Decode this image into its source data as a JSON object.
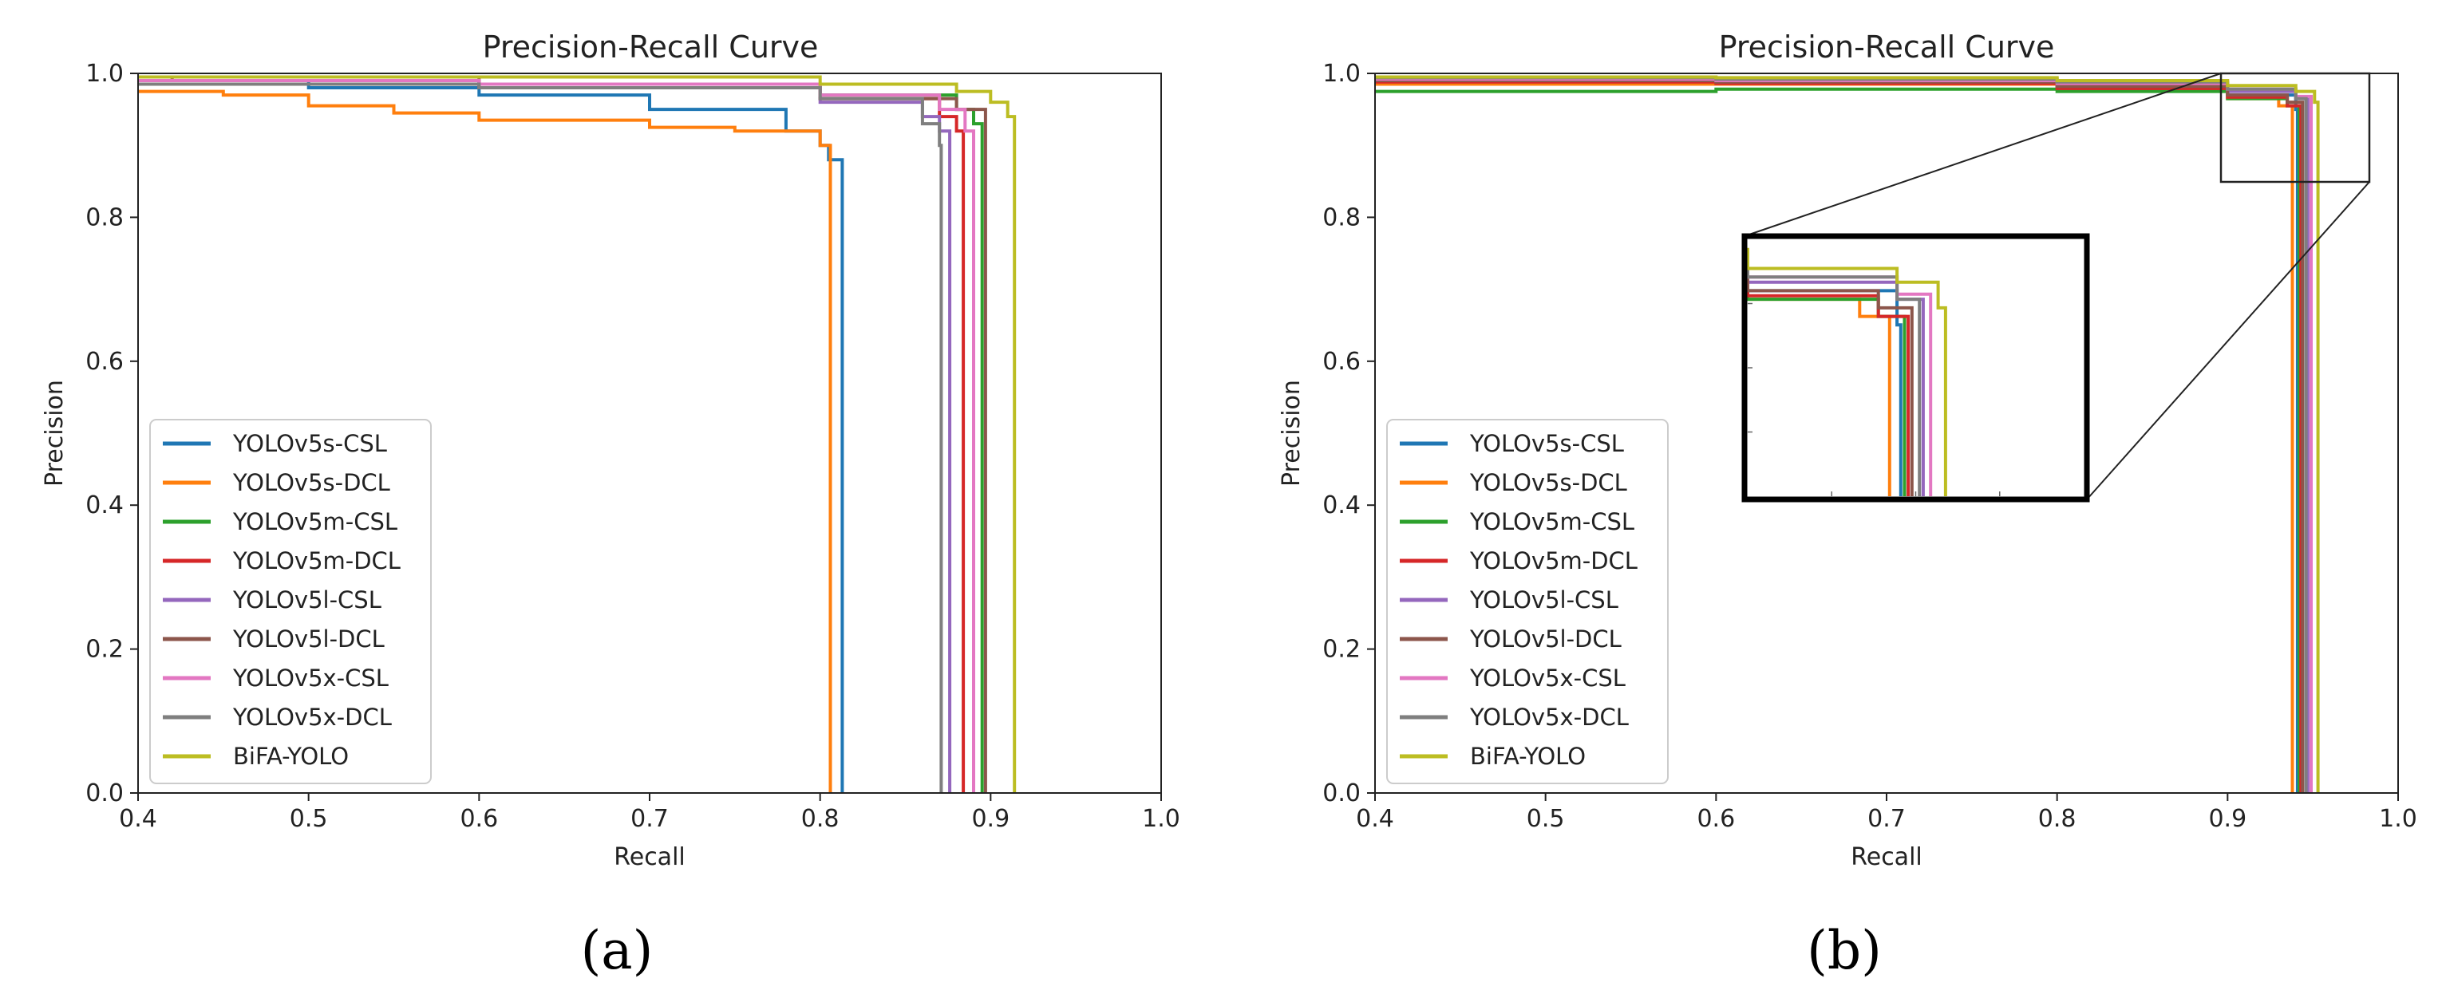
{
  "colors": {
    "YOLOv5s-CSL": "#1f77b4",
    "YOLOv5s-DCL": "#ff7f0e",
    "YOLOv5m-CSL": "#2ca02c",
    "YOLOv5m-DCL": "#d62728",
    "YOLOv5l-CSL": "#9467bd",
    "YOLOv5l-DCL": "#8c564b",
    "YOLOv5x-CSL": "#e377c2",
    "YOLOv5x-DCL": "#7f7f7f",
    "BiFA-YOLO": "#bcbd22"
  },
  "chart_data": [
    {
      "type": "line",
      "panel_label": "(a)",
      "title": "Precision-Recall Curve",
      "xlabel": "Recall",
      "ylabel": "Precision",
      "xlim": [
        0.4,
        1.0
      ],
      "ylim": [
        0.0,
        1.0
      ],
      "xticks": [
        "0.4",
        "0.5",
        "0.6",
        "0.7",
        "0.8",
        "0.9",
        "1.0"
      ],
      "yticks": [
        "0.0",
        "0.2",
        "0.4",
        "0.6",
        "0.8",
        "1.0"
      ],
      "legend_position": "lower-left",
      "series": [
        {
          "name": "YOLOv5s-CSL",
          "x": [
            0.4,
            0.5,
            0.6,
            0.7,
            0.78,
            0.8,
            0.805,
            0.813,
            0.813
          ],
          "y": [
            0.99,
            0.98,
            0.97,
            0.95,
            0.92,
            0.9,
            0.88,
            0.87,
            0.0
          ]
        },
        {
          "name": "YOLOv5s-DCL",
          "x": [
            0.4,
            0.45,
            0.5,
            0.55,
            0.6,
            0.65,
            0.7,
            0.75,
            0.8,
            0.806,
            0.806
          ],
          "y": [
            0.975,
            0.97,
            0.955,
            0.945,
            0.935,
            0.935,
            0.925,
            0.92,
            0.9,
            0.87,
            0.0
          ]
        },
        {
          "name": "YOLOv5m-CSL",
          "x": [
            0.4,
            0.6,
            0.8,
            0.88,
            0.89,
            0.895,
            0.895
          ],
          "y": [
            0.99,
            0.985,
            0.97,
            0.95,
            0.93,
            0.92,
            0.0
          ]
        },
        {
          "name": "YOLOv5m-DCL",
          "x": [
            0.4,
            0.6,
            0.8,
            0.87,
            0.88,
            0.884,
            0.884
          ],
          "y": [
            0.985,
            0.98,
            0.965,
            0.94,
            0.92,
            0.9,
            0.0
          ]
        },
        {
          "name": "YOLOv5l-CSL",
          "x": [
            0.4,
            0.6,
            0.8,
            0.86,
            0.87,
            0.876,
            0.876
          ],
          "y": [
            0.985,
            0.98,
            0.96,
            0.94,
            0.92,
            0.9,
            0.0
          ]
        },
        {
          "name": "YOLOv5l-DCL",
          "x": [
            0.4,
            0.42,
            0.6,
            0.8,
            0.88,
            0.897,
            0.897
          ],
          "y": [
            0.99,
            0.995,
            0.98,
            0.965,
            0.95,
            0.93,
            0.0
          ]
        },
        {
          "name": "YOLOv5x-CSL",
          "x": [
            0.4,
            0.6,
            0.8,
            0.87,
            0.885,
            0.89,
            0.89
          ],
          "y": [
            0.99,
            0.985,
            0.97,
            0.95,
            0.92,
            0.9,
            0.0
          ]
        },
        {
          "name": "YOLOv5x-DCL",
          "x": [
            0.4,
            0.6,
            0.8,
            0.86,
            0.87,
            0.871,
            0.871
          ],
          "y": [
            0.985,
            0.98,
            0.965,
            0.93,
            0.9,
            0.89,
            0.0
          ]
        },
        {
          "name": "BiFA-YOLO",
          "x": [
            0.4,
            0.6,
            0.8,
            0.88,
            0.9,
            0.91,
            0.914,
            0.914
          ],
          "y": [
            0.995,
            0.995,
            0.985,
            0.975,
            0.96,
            0.94,
            0.91,
            0.0
          ]
        }
      ]
    },
    {
      "type": "line",
      "panel_label": "(b)",
      "title": "Precision-Recall Curve",
      "xlabel": "Recall",
      "ylabel": "Precision",
      "xlim": [
        0.4,
        1.0
      ],
      "ylim": [
        0.0,
        1.0
      ],
      "xticks": [
        "0.4",
        "0.5",
        "0.6",
        "0.7",
        "0.8",
        "0.9",
        "1.0"
      ],
      "yticks": [
        "0.0",
        "0.2",
        "0.4",
        "0.6",
        "0.8",
        "1.0"
      ],
      "legend_position": "lower-left",
      "inset": {
        "xlim": [
          0.9,
          0.99
        ],
        "ylim": [
          0.85,
          1.0
        ],
        "has_zoom_box": true
      },
      "series": [
        {
          "name": "YOLOv5s-CSL",
          "x": [
            0.4,
            0.6,
            0.8,
            0.9,
            0.94,
            0.941,
            0.941
          ],
          "y": [
            0.99,
            0.988,
            0.98,
            0.97,
            0.95,
            0.93,
            0.0
          ]
        },
        {
          "name": "YOLOv5s-DCL",
          "x": [
            0.4,
            0.6,
            0.8,
            0.9,
            0.93,
            0.938,
            0.938
          ],
          "y": [
            0.985,
            0.985,
            0.978,
            0.965,
            0.955,
            0.94,
            0.0
          ]
        },
        {
          "name": "YOLOv5m-CSL",
          "x": [
            0.4,
            0.5,
            0.6,
            0.8,
            0.9,
            0.935,
            0.942,
            0.942
          ],
          "y": [
            0.975,
            0.975,
            0.978,
            0.975,
            0.965,
            0.955,
            0.935,
            0.0
          ]
        },
        {
          "name": "YOLOv5m-DCL",
          "x": [
            0.4,
            0.6,
            0.8,
            0.9,
            0.935,
            0.943,
            0.943
          ],
          "y": [
            0.988,
            0.986,
            0.979,
            0.967,
            0.955,
            0.94,
            0.0
          ]
        },
        {
          "name": "YOLOv5l-CSL",
          "x": [
            0.4,
            0.6,
            0.8,
            0.9,
            0.94,
            0.947,
            0.947
          ],
          "y": [
            0.99,
            0.989,
            0.984,
            0.975,
            0.965,
            0.95,
            0.0
          ]
        },
        {
          "name": "YOLOv5l-DCL",
          "x": [
            0.4,
            0.6,
            0.8,
            0.9,
            0.935,
            0.944,
            0.944
          ],
          "y": [
            0.99,
            0.988,
            0.982,
            0.97,
            0.96,
            0.945,
            0.0
          ]
        },
        {
          "name": "YOLOv5x-CSL",
          "x": [
            0.4,
            0.6,
            0.8,
            0.9,
            0.94,
            0.949,
            0.949
          ],
          "y": [
            0.992,
            0.99,
            0.986,
            0.978,
            0.968,
            0.952,
            0.0
          ]
        },
        {
          "name": "YOLOv5x-DCL",
          "x": [
            0.4,
            0.6,
            0.8,
            0.9,
            0.94,
            0.946,
            0.946
          ],
          "y": [
            0.994,
            0.992,
            0.988,
            0.978,
            0.965,
            0.95,
            0.0
          ]
        },
        {
          "name": "BiFA-YOLO",
          "x": [
            0.4,
            0.6,
            0.8,
            0.9,
            0.94,
            0.951,
            0.953,
            0.953
          ],
          "y": [
            0.995,
            0.994,
            0.99,
            0.983,
            0.975,
            0.96,
            0.95,
            0.0
          ]
        }
      ]
    }
  ]
}
